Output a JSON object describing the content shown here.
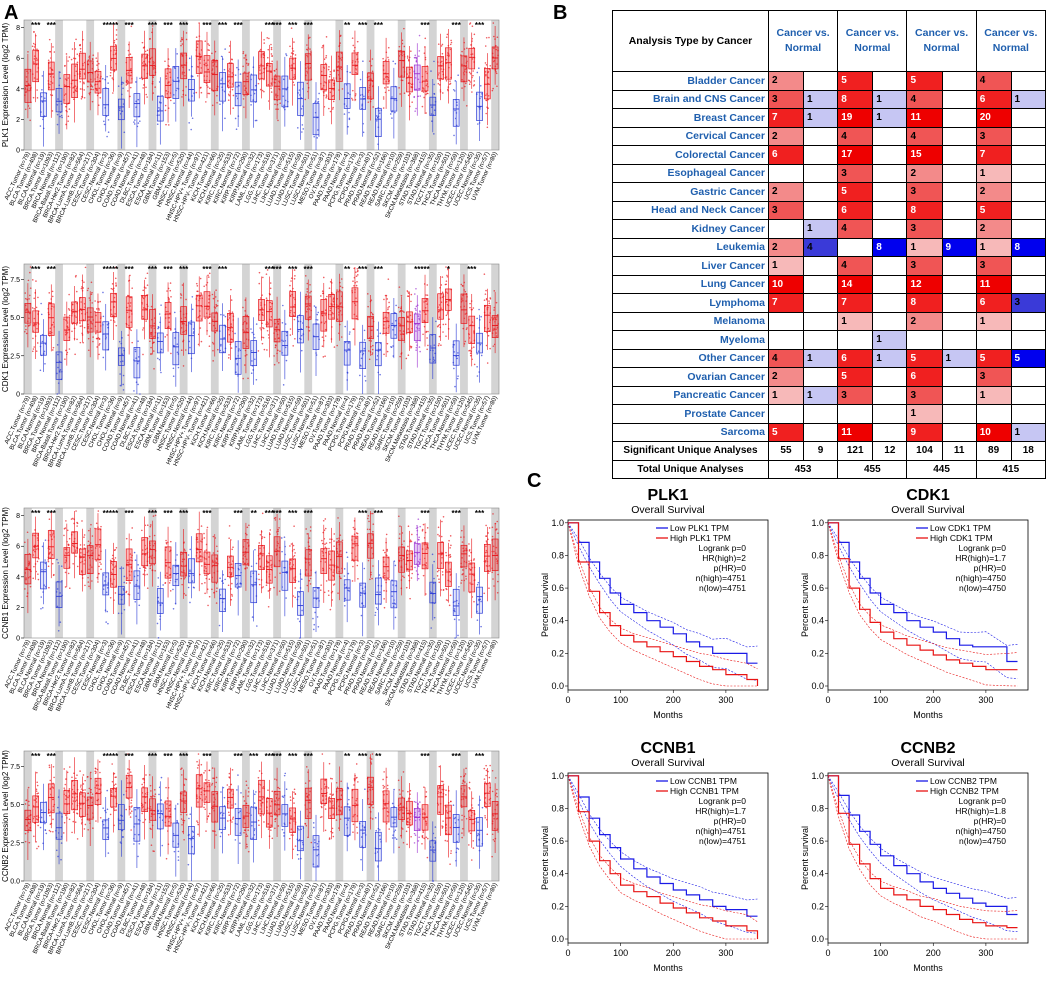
{
  "panels": {
    "a": "A",
    "b": "B",
    "c": "C"
  },
  "chart_data": [
    {
      "type": "box",
      "id": "PLK1",
      "ylabel": "PLK1 Expression Level (log2 TPM)",
      "yticks": [
        "0",
        "2",
        "4",
        "6",
        "8"
      ],
      "ylim": [
        0,
        8.5
      ]
    },
    {
      "type": "box",
      "id": "CDK1",
      "ylabel": "CDK1 Expression Level (log2 TPM)",
      "yticks": [
        "0",
        "2.5",
        "5.0",
        "7.5"
      ],
      "ylim": [
        0,
        8.5
      ]
    },
    {
      "type": "box",
      "id": "CCNB1",
      "ylabel": "CCNB1 Expression Level (log2 TPM)",
      "yticks": [
        "0",
        "2",
        "4",
        "6",
        "8"
      ],
      "ylim": [
        0,
        8.5
      ]
    },
    {
      "type": "box",
      "id": "CCNB2",
      "ylabel": "CCNB2 Expression Level (log2 TPM)",
      "yticks": [
        "0.0",
        "2.5",
        "5.0",
        "7.5"
      ],
      "ylim": [
        0,
        8.5
      ]
    },
    {
      "type": "table",
      "id": "oncomine",
      "header_title": "Analysis Type by Cancer",
      "column_groups": [
        "Cancer vs. Normal",
        "Cancer vs. Normal",
        "Cancer vs. Normal",
        "Cancer vs. Normal"
      ],
      "rows": [
        {
          "name": "Bladder Cancer",
          "cells": [
            "2",
            "",
            "5",
            "",
            "5",
            "",
            "4",
            ""
          ]
        },
        {
          "name": "Brain and CNS Cancer",
          "cells": [
            "3",
            "1",
            "8",
            "1",
            "4",
            "",
            "6",
            "1"
          ]
        },
        {
          "name": "Breast Cancer",
          "cells": [
            "7",
            "1",
            "19",
            "1",
            "11",
            "",
            "20",
            ""
          ]
        },
        {
          "name": "Cervical Cancer",
          "cells": [
            "2",
            "",
            "4",
            "",
            "4",
            "",
            "3",
            ""
          ]
        },
        {
          "name": "Colorectal Cancer",
          "cells": [
            "6",
            "",
            "17",
            "",
            "15",
            "",
            "7",
            ""
          ]
        },
        {
          "name": "Esophageal Cancer",
          "cells": [
            "",
            "",
            "3",
            "",
            "2",
            "",
            "1",
            ""
          ]
        },
        {
          "name": "Gastric Cancer",
          "cells": [
            "2",
            "",
            "5",
            "",
            "3",
            "",
            "2",
            ""
          ]
        },
        {
          "name": "Head and Neck Cancer",
          "cells": [
            "3",
            "",
            "6",
            "",
            "8",
            "",
            "5",
            ""
          ]
        },
        {
          "name": "Kidney Cancer",
          "cells": [
            "",
            "1",
            "4",
            "",
            "3",
            "",
            "2",
            ""
          ]
        },
        {
          "name": "Leukemia",
          "cells": [
            "2",
            "4",
            "",
            "8",
            "1",
            "9",
            "1",
            "8"
          ]
        },
        {
          "name": "Liver Cancer",
          "cells": [
            "1",
            "",
            "4",
            "",
            "3",
            "",
            "3",
            ""
          ]
        },
        {
          "name": "Lung Cancer",
          "cells": [
            "10",
            "",
            "14",
            "",
            "12",
            "",
            "11",
            ""
          ]
        },
        {
          "name": "Lymphoma",
          "cells": [
            "7",
            "",
            "7",
            "",
            "8",
            "",
            "6",
            "3"
          ]
        },
        {
          "name": "Melanoma",
          "cells": [
            "",
            "",
            "1",
            "",
            "2",
            "",
            "1",
            ""
          ]
        },
        {
          "name": "Myeloma",
          "cells": [
            "",
            "",
            "",
            "1",
            "",
            "",
            "",
            ""
          ]
        },
        {
          "name": "Other Cancer",
          "cells": [
            "4",
            "1",
            "6",
            "1",
            "5",
            "1",
            "5",
            "5"
          ]
        },
        {
          "name": "Ovarian Cancer",
          "cells": [
            "2",
            "",
            "5",
            "",
            "6",
            "",
            "3",
            ""
          ]
        },
        {
          "name": "Pancreatic Cancer",
          "cells": [
            "1",
            "1",
            "3",
            "",
            "3",
            "",
            "1",
            ""
          ]
        },
        {
          "name": "Prostate Cancer",
          "cells": [
            "",
            "",
            "",
            "",
            "1",
            "",
            "",
            ""
          ]
        },
        {
          "name": "Sarcoma",
          "cells": [
            "5",
            "",
            "11",
            "",
            "9",
            "",
            "10",
            "1"
          ]
        }
      ],
      "significant_label": "Significant Unique Analyses",
      "significant": [
        "55",
        "9",
        "121",
        "12",
        "104",
        "11",
        "89",
        "18"
      ],
      "total_label": "Total Unique Analyses",
      "total": [
        "453",
        "455",
        "445",
        "415"
      ]
    },
    {
      "type": "line",
      "id": "km-plk1",
      "title": "PLK1",
      "subtitle": "Overall Survival",
      "xlabel": "Months",
      "ylabel": "Percent survival",
      "xticks": [
        "0",
        "100",
        "200",
        "300"
      ],
      "yticks": [
        "0.0",
        "0.2",
        "0.4",
        "0.6",
        "0.8",
        "1.0"
      ],
      "legend": [
        "Low PLK1 TPM",
        "High PLK1 TPM"
      ],
      "stats": [
        "Logrank p=0",
        "HR(high)=2",
        "p(HR)=0",
        "n(high)=4751",
        "n(low)=4751"
      ],
      "series": [
        {
          "name": "Low",
          "x": [
            0,
            20,
            40,
            60,
            80,
            100,
            125,
            150,
            175,
            200,
            225,
            250,
            275,
            300,
            340,
            360
          ],
          "y": [
            1.0,
            0.88,
            0.76,
            0.66,
            0.57,
            0.5,
            0.45,
            0.4,
            0.36,
            0.32,
            0.27,
            0.24,
            0.2,
            0.2,
            0.14,
            0.14
          ]
        },
        {
          "name": "High",
          "x": [
            0,
            20,
            40,
            60,
            80,
            100,
            125,
            150,
            175,
            200,
            225,
            250,
            275,
            300,
            340,
            360
          ],
          "y": [
            1.0,
            0.76,
            0.58,
            0.45,
            0.37,
            0.31,
            0.27,
            0.24,
            0.21,
            0.18,
            0.15,
            0.12,
            0.1,
            0.07,
            0.04,
            0.0
          ]
        }
      ]
    },
    {
      "type": "line",
      "id": "km-cdk1",
      "title": "CDK1",
      "subtitle": "Overall Survival",
      "xlabel": "Months",
      "ylabel": "Percent survival",
      "xticks": [
        "0",
        "100",
        "200",
        "300"
      ],
      "yticks": [
        "0.0",
        "0.2",
        "0.4",
        "0.6",
        "0.8",
        "1.0"
      ],
      "legend": [
        "Low CDK1 TPM",
        "High CDK1 TPM"
      ],
      "stats": [
        "Logrank p=0",
        "HR(high)=1.7",
        "p(HR)=0",
        "n(high)=4750",
        "n(low)=4750"
      ],
      "series": [
        {
          "name": "Low",
          "x": [
            0,
            20,
            40,
            60,
            80,
            100,
            125,
            150,
            175,
            200,
            225,
            250,
            275,
            300,
            340,
            360
          ],
          "y": [
            1.0,
            0.88,
            0.76,
            0.66,
            0.57,
            0.5,
            0.45,
            0.4,
            0.36,
            0.33,
            0.29,
            0.25,
            0.24,
            0.24,
            0.15,
            0.15
          ]
        },
        {
          "name": "High",
          "x": [
            0,
            20,
            40,
            60,
            80,
            100,
            125,
            150,
            175,
            200,
            225,
            250,
            275,
            300,
            340,
            360
          ],
          "y": [
            1.0,
            0.78,
            0.6,
            0.47,
            0.39,
            0.33,
            0.29,
            0.25,
            0.22,
            0.19,
            0.16,
            0.14,
            0.12,
            0.1,
            0.1,
            0.1
          ]
        }
      ]
    },
    {
      "type": "line",
      "id": "km-ccnb1",
      "title": "CCNB1",
      "subtitle": "Overall Survival",
      "xlabel": "Months",
      "ylabel": "Percent survival",
      "xticks": [
        "0",
        "100",
        "200",
        "300"
      ],
      "yticks": [
        "0.0",
        "0.2",
        "0.4",
        "0.6",
        "0.8",
        "1.0"
      ],
      "legend": [
        "Low CCNB1 TPM",
        "High CCNB1 TPM"
      ],
      "stats": [
        "Logrank p=0",
        "HR(high)=1.7",
        "p(HR)=0",
        "n(high)=4751",
        "n(low)=4751"
      ],
      "series": [
        {
          "name": "Low",
          "x": [
            0,
            20,
            40,
            60,
            80,
            100,
            125,
            150,
            175,
            200,
            225,
            250,
            275,
            300,
            340,
            360
          ],
          "y": [
            1.0,
            0.87,
            0.74,
            0.64,
            0.56,
            0.49,
            0.43,
            0.38,
            0.34,
            0.3,
            0.27,
            0.24,
            0.2,
            0.18,
            0.14,
            0.14
          ]
        },
        {
          "name": "High",
          "x": [
            0,
            20,
            40,
            60,
            80,
            100,
            125,
            150,
            175,
            200,
            225,
            250,
            275,
            300,
            340,
            360
          ],
          "y": [
            1.0,
            0.78,
            0.6,
            0.48,
            0.4,
            0.33,
            0.29,
            0.26,
            0.22,
            0.19,
            0.16,
            0.13,
            0.11,
            0.08,
            0.05,
            0.0
          ]
        }
      ]
    },
    {
      "type": "line",
      "id": "km-ccnb2",
      "title": "CCNB2",
      "subtitle": "Overall Survival",
      "xlabel": "Months",
      "ylabel": "Percent survival",
      "xticks": [
        "0",
        "100",
        "200",
        "300"
      ],
      "yticks": [
        "0.0",
        "0.2",
        "0.4",
        "0.6",
        "0.8",
        "1.0"
      ],
      "legend": [
        "Low CCNB2 TPM",
        "High CCNB2 TPM"
      ],
      "stats": [
        "Logrank p=0",
        "HR(high)=1.8",
        "p(HR)=0",
        "n(high)=4750",
        "n(low)=4750"
      ],
      "series": [
        {
          "name": "Low",
          "x": [
            0,
            20,
            40,
            60,
            80,
            100,
            125,
            150,
            175,
            200,
            225,
            250,
            275,
            300,
            340,
            360
          ],
          "y": [
            1.0,
            0.88,
            0.76,
            0.66,
            0.58,
            0.51,
            0.45,
            0.4,
            0.35,
            0.31,
            0.28,
            0.25,
            0.22,
            0.2,
            0.15,
            0.15
          ]
        },
        {
          "name": "High",
          "x": [
            0,
            20,
            40,
            60,
            80,
            100,
            125,
            150,
            175,
            200,
            225,
            250,
            275,
            300,
            340,
            360
          ],
          "y": [
            1.0,
            0.77,
            0.58,
            0.46,
            0.37,
            0.31,
            0.27,
            0.24,
            0.2,
            0.18,
            0.15,
            0.12,
            0.1,
            0.08,
            0.07,
            0.07
          ]
        }
      ]
    }
  ],
  "box_categories": [
    "ACC.Tumor (n=79)",
    "BLCA.Tumor (n=408)",
    "BLCA.Normal (n=19)",
    "BRCA.Tumor (n=1093)",
    "BRCA.Normal (n=112)",
    "BRCA-Basal.Tumor (n=190)",
    "BRCA-Her2.Tumor (n=82)",
    "BRCA-LumA.Tumor (n=564)",
    "BRCA-LumB.Tumor (n=217)",
    "CESC.Tumor (n=304)",
    "CESC.Normal (n=3)",
    "CHOL.Tumor (n=36)",
    "CHOL.Normal (n=9)",
    "COAD.Tumor (n=457)",
    "COAD.Normal (n=41)",
    "DLBC.Tumor (n=48)",
    "ESCA.Tumor (n=184)",
    "ESCA.Normal (n=11)",
    "GBM.Tumor (n=153)",
    "GBM.Normal (n=5)",
    "HNSC.Tumor (n=520)",
    "HNSC.Normal (n=44)",
    "HNSC-HPV+.Tumor (n=97)",
    "HNSC-HPV-.Tumor (n=421)",
    "KICH.Tumor (n=66)",
    "KICH.Normal (n=25)",
    "KIRC.Tumor (n=533)",
    "KIRC.Normal (n=72)",
    "KIRP.Tumor (n=290)",
    "KIRP.Normal (n=32)",
    "LAML.Tumor (n=173)",
    "LGG.Tumor (n=516)",
    "LIHC.Tumor (n=371)",
    "LIHC.Normal (n=50)",
    "LUAD.Tumor (n=515)",
    "LUAD.Normal (n=59)",
    "LUSC.Tumor (n=501)",
    "LUSC.Normal (n=51)",
    "MESO.Tumor (n=87)",
    "OV.Tumor (n=303)",
    "PAAD.Tumor (n=178)",
    "PAAD.Normal (n=4)",
    "PCPG.Tumor (n=179)",
    "PCPG.Normal (n=3)",
    "PRAD.Tumor (n=497)",
    "PRAD.Normal (n=52)",
    "READ.Tumor (n=166)",
    "READ.Normal (n=10)",
    "SARC.Tumor (n=259)",
    "SKCM.Tumor (n=103)",
    "SKCM.Metastasis (n=368)",
    "STAD.Tumor (n=415)",
    "STAD.Normal (n=35)",
    "TGCT.Tumor (n=150)",
    "THCA.Tumor (n=501)",
    "THCA.Normal (n=59)",
    "THYM.Tumor (n=120)",
    "UCEC.Tumor (n=545)",
    "UCEC.Normal (n=35)",
    "UCS.Tumor (n=57)",
    "UVM.Tumor (n=80)"
  ],
  "box_stars": {
    "PLK1": [
      "",
      "***",
      "",
      "***",
      "",
      "",
      "",
      "",
      "",
      "",
      "**",
      "***",
      "",
      "***",
      "",
      "",
      "***",
      "",
      "***",
      "",
      "***",
      "",
      "",
      "***",
      "",
      "***",
      "",
      "***",
      "",
      "",
      "",
      "***",
      "***",
      "",
      "***",
      "",
      "***",
      "",
      "",
      "",
      "",
      "**",
      "",
      "***",
      "",
      "***",
      "",
      "",
      "",
      "",
      "",
      "***",
      "",
      "",
      "",
      "***",
      "",
      "",
      "***",
      "",
      ""
    ],
    "CDK1": [
      "",
      "***",
      "",
      "***",
      "",
      "",
      "",
      "",
      "",
      "",
      "**",
      "***",
      "",
      "***",
      "",
      "",
      "***",
      "",
      "***",
      "",
      "***",
      "",
      "",
      "***",
      "",
      "***",
      "",
      "",
      "",
      "",
      "",
      "***",
      "***",
      "",
      "***",
      "",
      "***",
      "",
      "",
      "",
      "",
      "**",
      "",
      "***",
      "",
      "***",
      "",
      "",
      "",
      "",
      "**",
      "***",
      "",
      "",
      "*",
      "",
      "",
      "***",
      "",
      ""
    ],
    "CCNB1": [
      "",
      "***",
      "",
      "***",
      "",
      "",
      "",
      "",
      "",
      "",
      "**",
      "***",
      "",
      "***",
      "",
      "",
      "***",
      "",
      "***",
      "",
      "***",
      "",
      "",
      "***",
      "",
      "",
      "",
      "***",
      "",
      "**",
      "",
      "***",
      "***",
      "",
      "***",
      "",
      "***",
      "",
      "",
      "",
      "",
      "",
      "",
      "***",
      "",
      "***",
      "",
      "",
      "",
      "",
      "",
      "***",
      "",
      "",
      "",
      "***",
      "",
      "",
      "***",
      "",
      ""
    ],
    "CCNB2": [
      "",
      "***",
      "",
      "***",
      "",
      "",
      "",
      "",
      "",
      "",
      "**",
      "***",
      "",
      "***",
      "",
      "",
      "***",
      "",
      "***",
      "",
      "***",
      "",
      "",
      "***",
      "",
      "",
      "",
      "***",
      "",
      "***",
      "",
      "***",
      "***",
      "",
      "***",
      "",
      "***",
      "",
      "",
      "",
      "",
      "**",
      "",
      "***",
      "",
      "**",
      "",
      "",
      "",
      "",
      "",
      "***",
      "",
      "",
      "",
      "***",
      "",
      "",
      "***",
      "",
      ""
    ]
  }
}
